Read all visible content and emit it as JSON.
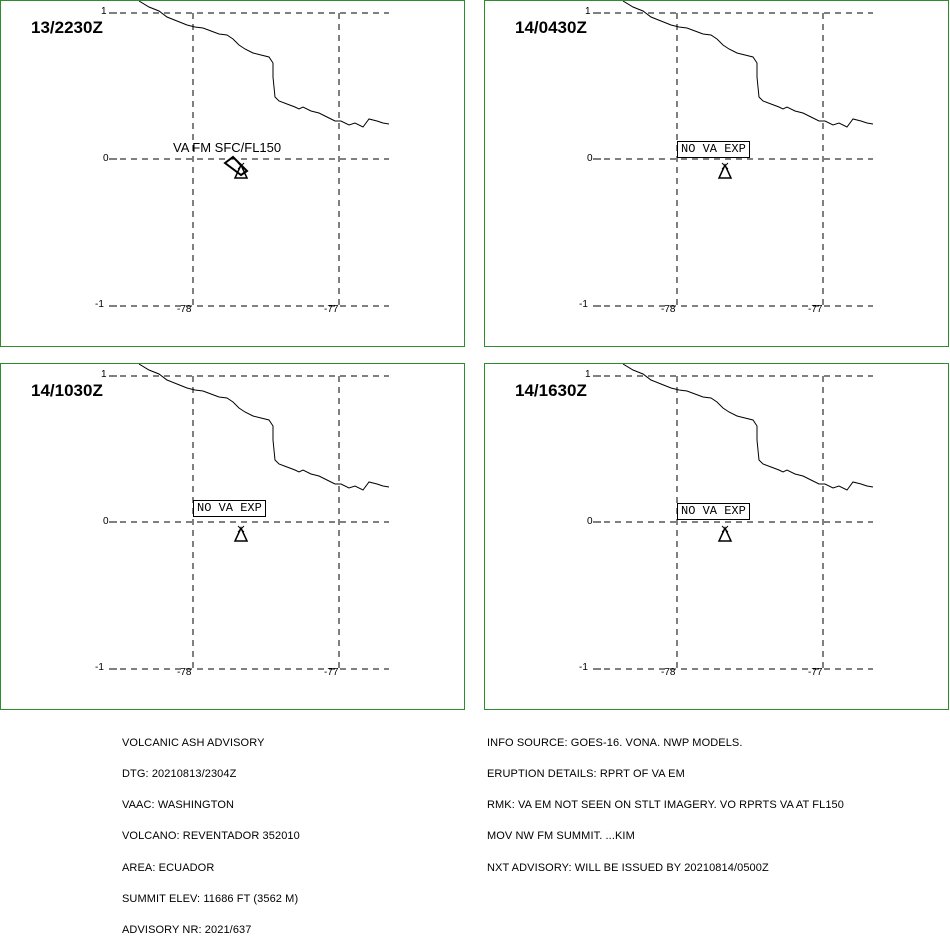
{
  "panels": [
    {
      "time": "13/2230Z",
      "label": "VA FM SFC/FL150",
      "label_style": "plain"
    },
    {
      "time": "14/0430Z",
      "label": "NO VA EXP",
      "label_style": "box"
    },
    {
      "time": "14/1030Z",
      "label": "NO VA EXP",
      "label_style": "box"
    },
    {
      "time": "14/1630Z",
      "label": "NO VA EXP",
      "label_style": "box"
    }
  ],
  "axes": {
    "lat_labels": [
      "1",
      "0",
      "-1"
    ],
    "lon_labels": [
      "-78",
      "-77"
    ]
  },
  "advisory_left": [
    "VOLCANIC ASH ADVISORY",
    "DTG: 20210813/2304Z",
    "VAAC: WASHINGTON",
    "VOLCANO: REVENTADOR 352010",
    "AREA: ECUADOR",
    "SUMMIT ELEV: 11686 FT (3562 M)",
    "ADVISORY NR: 2021/637"
  ],
  "advisory_right": [
    "INFO SOURCE: GOES-16. VONA. NWP MODELS.",
    "ERUPTION DETAILS: RPRT OF VA EM",
    "RMK: VA EM NOT SEEN ON STLT IMAGERY. VO RPRTS VA AT FL150",
    "MOV NW FM SUMMIT. ...KIM",
    "NXT ADVISORY: WILL BE ISSUED BY 20210814/0500Z"
  ],
  "colors": {
    "frame": "#2e8b2e",
    "lines": "#000000"
  },
  "icons": {
    "volcano": "volcano-triangle-icon"
  }
}
